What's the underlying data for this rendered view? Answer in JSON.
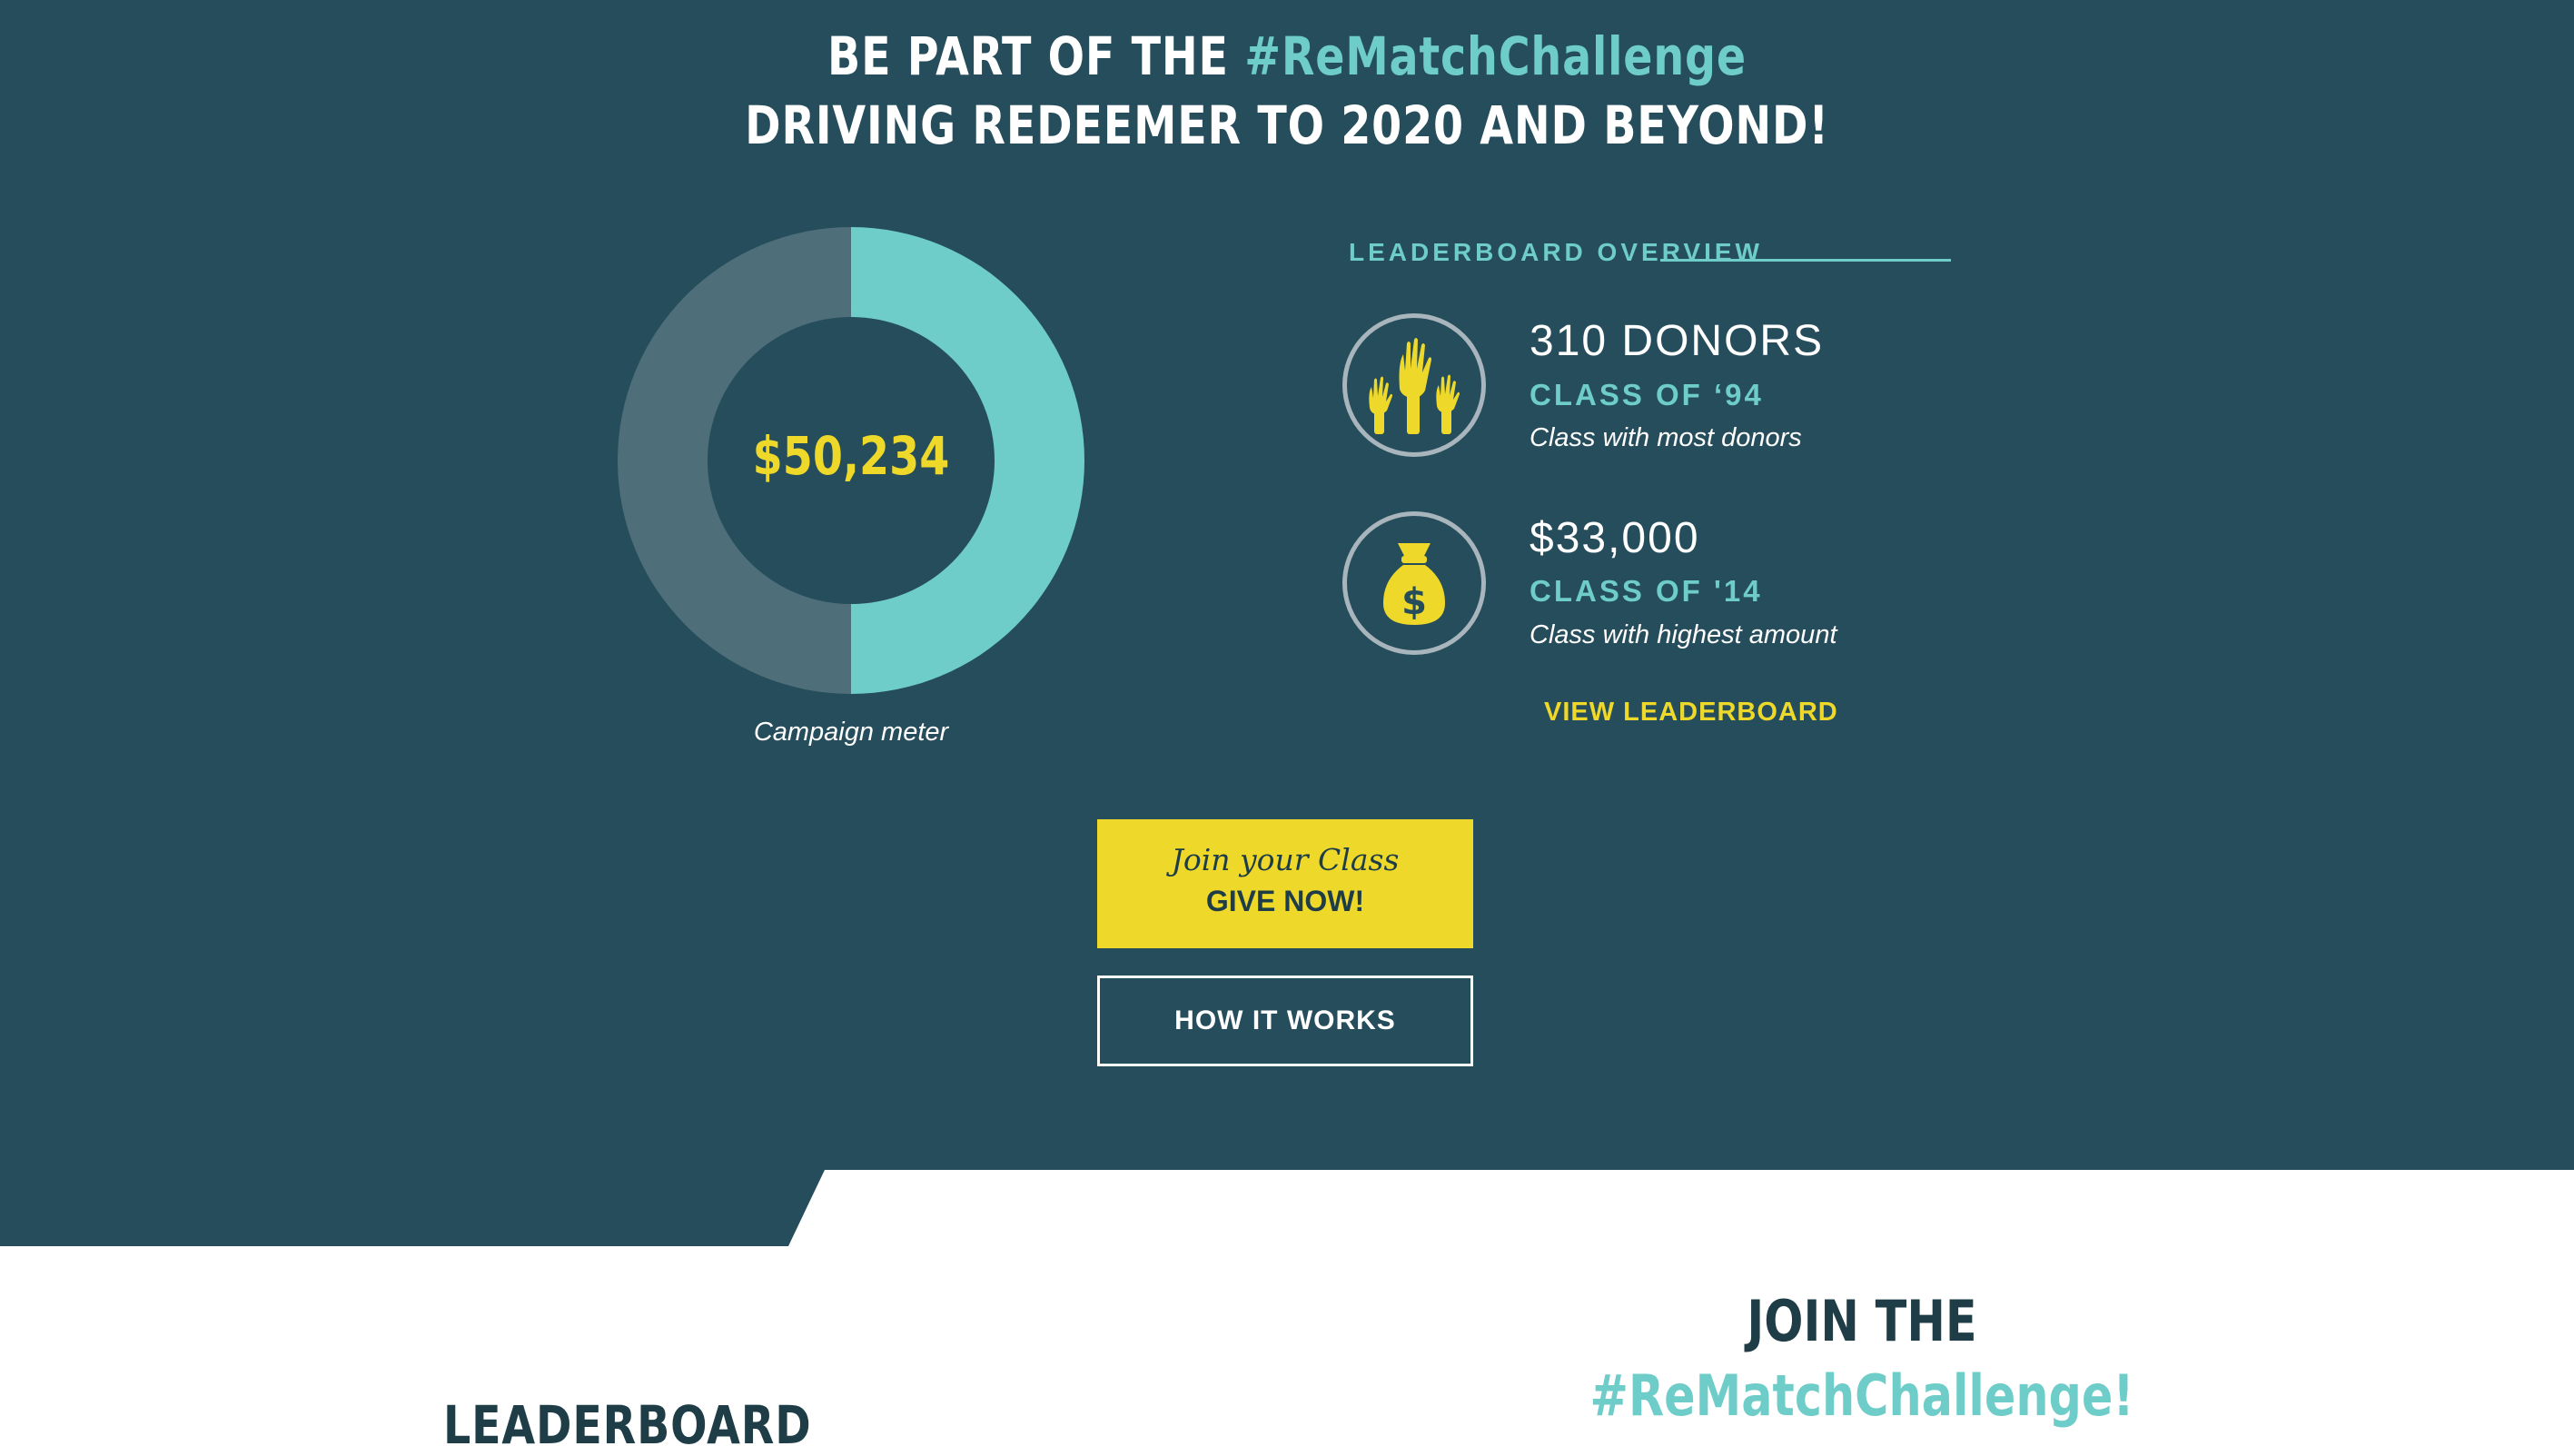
{
  "headline": {
    "line1_prefix": "BE PART OF THE ",
    "line1_hashtag": "#ReMatchChallenge",
    "line2": "DRIVING REDEEMER TO 2020 AND BEYOND!"
  },
  "campaign_meter": {
    "amount": "$50,234",
    "label": "Campaign meter",
    "progress_fraction": 0.5
  },
  "leaderboard_overview": {
    "title": "LEADERBOARD OVERVIEW",
    "items": [
      {
        "icon": "raised-hands-icon",
        "main": "310 DONORS",
        "class_name": "CLASS OF ‘94",
        "description": "Class with most donors"
      },
      {
        "icon": "money-bag-icon",
        "main": "$33,000",
        "class_name": "CLASS OF '14",
        "description": "Class with highest amount"
      }
    ],
    "view_link": "VIEW LEADERBOARD"
  },
  "buttons": {
    "give_line1": "Join your Class",
    "give_line2": "GIVE NOW!",
    "how_it_works": "HOW IT WORKS"
  },
  "lower": {
    "leaderboard_heading": "LEADERBOARD",
    "join_line1": "JOIN THE",
    "join_line2": "#ReMatchChallenge!"
  },
  "colors": {
    "background": "#254d5b",
    "accent_teal": "#6ecdc9",
    "accent_yellow": "#eed92a",
    "meter_remaining": "#4e6e79"
  }
}
